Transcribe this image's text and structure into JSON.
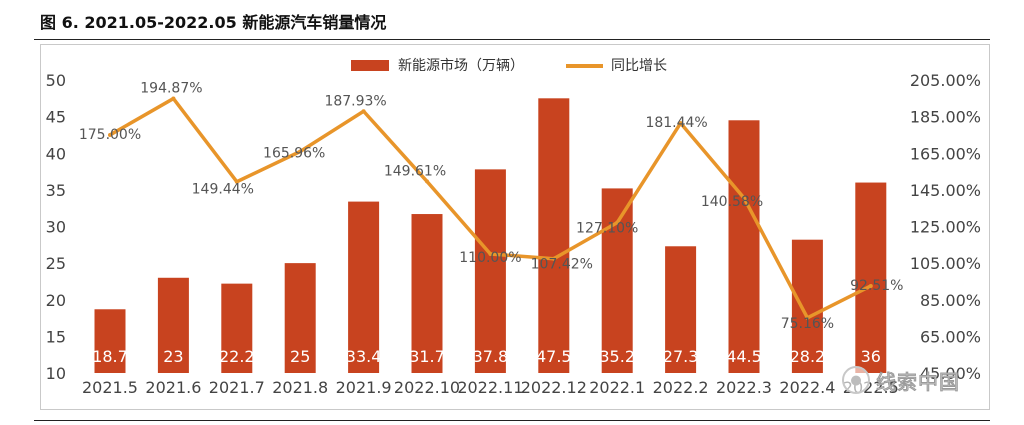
{
  "figure": {
    "title": "图 6. 2021.05-2022.05 新能源汽车销量情况"
  },
  "watermark": {
    "icon": "wechat-icon",
    "text": "线索中国"
  },
  "chart_data": {
    "type": "bar",
    "title": "",
    "categories": [
      "2021.5",
      "2021.6",
      "2021.7",
      "2021.8",
      "2021.9",
      "2022.10",
      "2022.11",
      "2022.12",
      "2022.1",
      "2022.2",
      "2022.3",
      "2022.4",
      "2022.5"
    ],
    "series": [
      {
        "name": "新能源市场（万辆）",
        "type": "bar",
        "axis": "left",
        "color": "#c8431f",
        "values": [
          18.7,
          23,
          22.2,
          25,
          33.4,
          31.7,
          37.8,
          47.5,
          35.2,
          27.3,
          44.5,
          28.2,
          36
        ],
        "labels": [
          "18.7",
          "23",
          "22.2",
          "25",
          "33.4",
          "31.7",
          "37.8",
          "47.5",
          "35.2",
          "27.3",
          "44.5",
          "28.2",
          "36"
        ]
      },
      {
        "name": "同比增长",
        "type": "line",
        "axis": "right",
        "color": "#e8952a",
        "values": [
          175.0,
          194.87,
          149.44,
          165.96,
          187.93,
          149.61,
          110.0,
          107.42,
          127.1,
          181.44,
          140.58,
          75.16,
          92.51
        ],
        "labels": [
          "175.00%",
          "194.87%",
          "149.44%",
          "165.96%",
          "187.93%",
          "149.61%",
          "110.00%",
          "107.42%",
          "127.10%",
          "181.44%",
          "140.58%",
          "75.16%",
          "92.51%"
        ]
      }
    ],
    "y_left": {
      "min": 10,
      "max": 50,
      "ticks": [
        "10",
        "15",
        "20",
        "25",
        "30",
        "35",
        "40",
        "45",
        "50"
      ],
      "tick_values": [
        10,
        15,
        20,
        25,
        30,
        35,
        40,
        45,
        50
      ]
    },
    "y_right": {
      "min": 45,
      "max": 205,
      "ticks": [
        "45.00%",
        "65.00%",
        "85.00%",
        "105.00%",
        "125.00%",
        "145.00%",
        "165.00%",
        "185.00%",
        "205.00%"
      ],
      "tick_values": [
        45,
        65,
        85,
        105,
        125,
        145,
        165,
        185,
        205
      ]
    },
    "legend_position": "top-center",
    "grid": false
  }
}
